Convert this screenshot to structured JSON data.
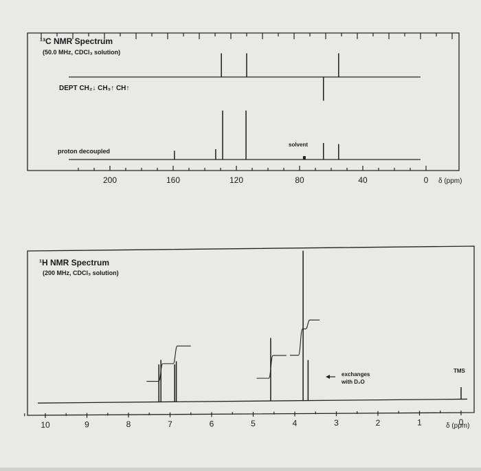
{
  "chart_data": [
    {
      "type": "line",
      "title": "¹³C NMR Spectrum",
      "subtitle": "(50.0 MHz, CDCl₃ solution)",
      "xlabel": "δ (ppm)",
      "xlim": [
        220,
        0
      ],
      "x_reversed": true,
      "x_ticks": [
        200,
        160,
        120,
        80,
        40,
        0
      ],
      "series": [
        {
          "name": "DEPT CH₂↓ CH₃↑ CH↑",
          "peaks": [
            {
              "ppm": 113.5,
              "direction": "up",
              "height": 0.75
            },
            {
              "ppm": 129.5,
              "direction": "up",
              "height": 0.75
            },
            {
              "ppm": 55.3,
              "direction": "up",
              "height": 0.75
            },
            {
              "ppm": 64.9,
              "direction": "down",
              "height": 0.75
            }
          ]
        },
        {
          "name": "proton decoupled",
          "peaks": [
            {
              "ppm": 159.2,
              "height": 0.17
            },
            {
              "ppm": 133.1,
              "height": 0.2
            },
            {
              "ppm": 128.7,
              "height": 0.95
            },
            {
              "ppm": 113.9,
              "height": 0.95
            },
            {
              "ppm": 77.0,
              "height": 0.07,
              "label": "solvent"
            },
            {
              "ppm": 64.9,
              "height": 0.32
            },
            {
              "ppm": 55.3,
              "height": 0.3
            }
          ]
        }
      ]
    },
    {
      "type": "line",
      "title": "¹H NMR Spectrum",
      "subtitle": "(200 MHz, CDCl₃ solution)",
      "xlabel": "δ (ppm)",
      "xlim": [
        10,
        0
      ],
      "x_reversed": true,
      "x_ticks": [
        10,
        9,
        8,
        7,
        6,
        5,
        4,
        3,
        2,
        1,
        0
      ],
      "series": [
        {
          "name": "",
          "peaks": [
            {
              "ppm": 7.27,
              "height": 0.25
            },
            {
              "ppm": 7.22,
              "height": 0.28
            },
            {
              "ppm": 6.89,
              "height": 0.25
            },
            {
              "ppm": 6.85,
              "height": 0.27
            },
            {
              "ppm": 4.58,
              "height": 0.42
            },
            {
              "ppm": 3.8,
              "height": 1.0
            },
            {
              "ppm": 3.68,
              "height": 0.27,
              "label": "exchanges with D₂O"
            },
            {
              "ppm": 0.0,
              "height": 0.08,
              "label": "TMS"
            }
          ],
          "integrals": [
            {
              "from": 7.4,
              "to": 6.7,
              "steps": [
                0.0,
                0.5,
                1.0
              ],
              "level_start": 0.0,
              "level_end": 0.85
            },
            {
              "from": 4.75,
              "to": 4.4,
              "steps": [
                0.0,
                1.0
              ],
              "level_start": 0.05,
              "level_end": 0.6
            },
            {
              "from": 3.95,
              "to": 3.6,
              "steps": [
                0.0,
                0.75,
                1.0
              ],
              "level_start": 0.6,
              "level_end": 1.45
            }
          ]
        }
      ]
    }
  ],
  "c13": {
    "title": "¹³C NMR Spectrum",
    "subtitle": "(50.0 MHz, CDCl₃ solution)",
    "dept_label": "DEPT CH₂↓ CH₃↑ CH↑",
    "decoupled_label": "proton decoupled",
    "solvent_label": "solvent",
    "axis_unit": "δ (ppm)"
  },
  "h1": {
    "title": "¹H NMR Spectrum",
    "subtitle": "(200 MHz, CDCl₃ solution)",
    "exchange_line1": "exchanges",
    "exchange_line2": "with D₂O",
    "tms_label": "TMS",
    "axis_unit": "δ (ppm)"
  },
  "colors": {
    "background": "#cfcfcd",
    "paper": "#e9e9e7",
    "ink": "#1a1a1a"
  }
}
